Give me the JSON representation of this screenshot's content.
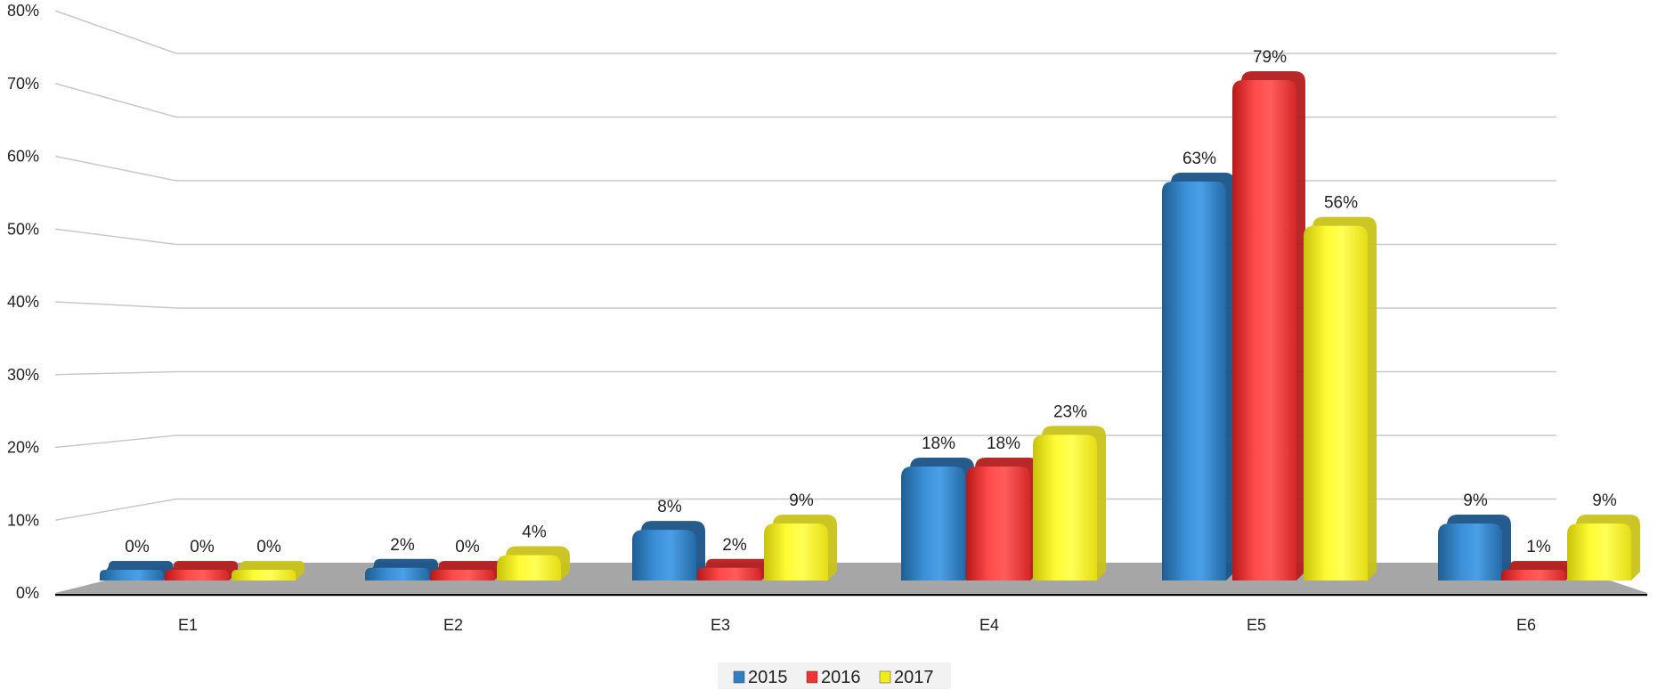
{
  "chart_data": {
    "type": "bar",
    "title": "",
    "xlabel": "",
    "ylabel": "",
    "ylim": [
      0,
      80
    ],
    "y_ticks": [
      "0%",
      "10%",
      "20%",
      "30%",
      "40%",
      "50%",
      "60%",
      "70%",
      "80%"
    ],
    "categories": [
      "E1",
      "E2",
      "E3",
      "E4",
      "E5",
      "E6"
    ],
    "series": [
      {
        "name": "2015",
        "color": "#2e7fc3",
        "values": [
          0,
          2,
          8,
          18,
          63,
          9
        ],
        "labels": [
          "0%",
          "2%",
          "8%",
          "18%",
          "63%",
          "9%"
        ]
      },
      {
        "name": "2016",
        "color": "#f03434",
        "values": [
          0,
          0,
          2,
          18,
          79,
          1
        ],
        "labels": [
          "0%",
          "0%",
          "2%",
          "18%",
          "79%",
          "1%"
        ]
      },
      {
        "name": "2017",
        "color": "#f2ec1c",
        "values": [
          0,
          4,
          9,
          23,
          56,
          9
        ],
        "labels": [
          "0%",
          "4%",
          "9%",
          "23%",
          "56%",
          "9%"
        ]
      }
    ],
    "grid": true,
    "legend_position": "bottom-center",
    "style": "3d-cylinder-bars",
    "floor_color": "#a6a6a6"
  }
}
